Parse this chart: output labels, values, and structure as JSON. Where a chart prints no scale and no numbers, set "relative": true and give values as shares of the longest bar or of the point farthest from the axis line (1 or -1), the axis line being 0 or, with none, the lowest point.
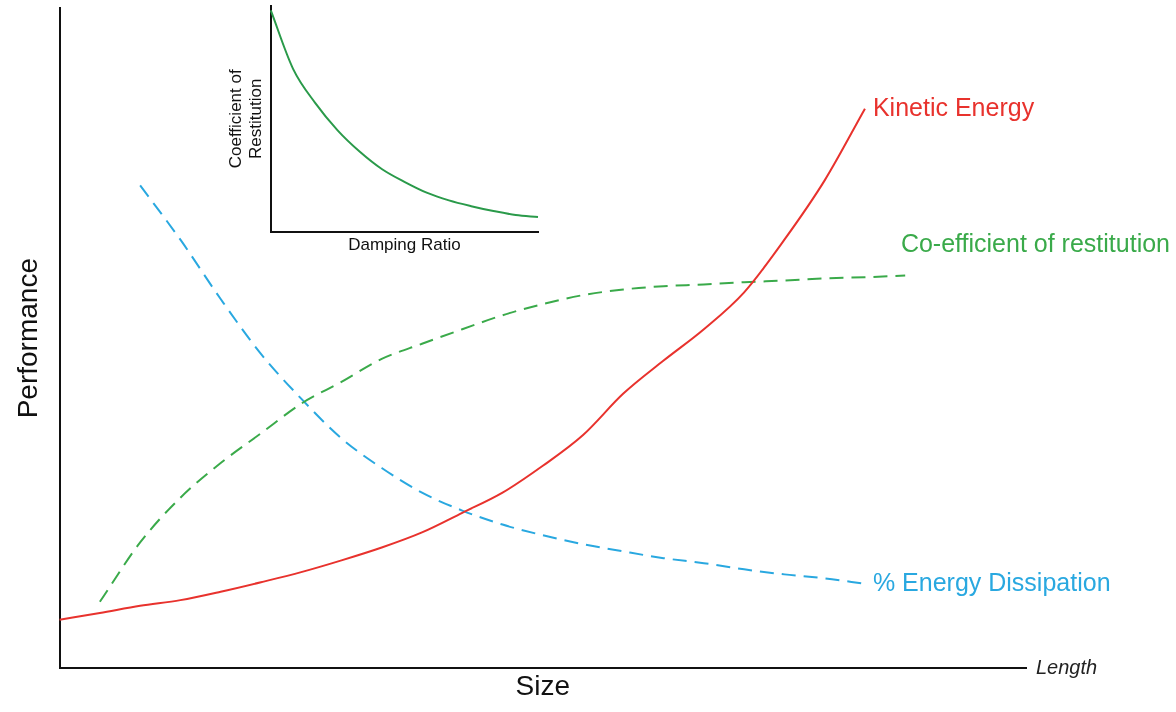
{
  "chart_data": [
    {
      "type": "line",
      "relative": true,
      "xlabel": "Size",
      "ylabel": "Performance",
      "annotations": [
        "Length"
      ],
      "legend": false,
      "grid": false,
      "tick_labels": false,
      "marker": "none",
      "categories": [
        null,
        null,
        null,
        null,
        null,
        null,
        null,
        null,
        null,
        null,
        null,
        null,
        null,
        null,
        null,
        null,
        null,
        null,
        null,
        null,
        null,
        null,
        null,
        null,
        null
      ],
      "series": [
        {
          "name": "Kinetic Energy",
          "color": "#e8322d",
          "line_style": "solid",
          "values": [
            0.087,
            0.099,
            0.112,
            0.122,
            0.137,
            0.154,
            0.172,
            0.193,
            0.216,
            0.243,
            0.278,
            0.314,
            0.362,
            0.417,
            0.491,
            0.55,
            0.606,
            0.672,
            0.766,
            0.872,
            1,
            null,
            null,
            null,
            null
          ]
        },
        {
          "name": "Co-efficient of restitution",
          "color": "#3aaa4a",
          "line_style": "dashed",
          "values": [
            null,
            0.119,
            0.225,
            0.305,
            0.367,
            0.42,
            0.473,
            0.512,
            0.553,
            0.58,
            0.606,
            0.631,
            0.651,
            0.667,
            0.677,
            0.683,
            0.686,
            0.69,
            0.693,
            0.697,
            0.699,
            0.702,
            null,
            null,
            null
          ]
        },
        {
          "name": "% Energy Dissipation",
          "color": "#29a8e0",
          "line_style": "dashed",
          "values": [
            null,
            null,
            0.863,
            0.766,
            0.66,
            0.562,
            0.482,
            0.411,
            0.358,
            0.314,
            0.282,
            0.257,
            0.238,
            0.222,
            0.209,
            0.197,
            0.188,
            0.177,
            0.168,
            0.161,
            0.151,
            null,
            null,
            null,
            null
          ]
        }
      ]
    },
    {
      "type": "line",
      "relative": true,
      "xlabel": "Damping Ratio",
      "ylabel": "Coefficient of Restitution",
      "legend": false,
      "grid": false,
      "tick_labels": false,
      "marker": "none",
      "categories": [
        null,
        null,
        null,
        null,
        null,
        null,
        null,
        null,
        null,
        null,
        null,
        null,
        null
      ],
      "series": [
        {
          "color": "#2a9a4a",
          "line_style": "solid",
          "values": [
            1,
            0.736,
            0.581,
            0.458,
            0.361,
            0.282,
            0.225,
            0.176,
            0.141,
            0.115,
            0.093,
            0.075,
            0.066
          ]
        }
      ]
    }
  ]
}
